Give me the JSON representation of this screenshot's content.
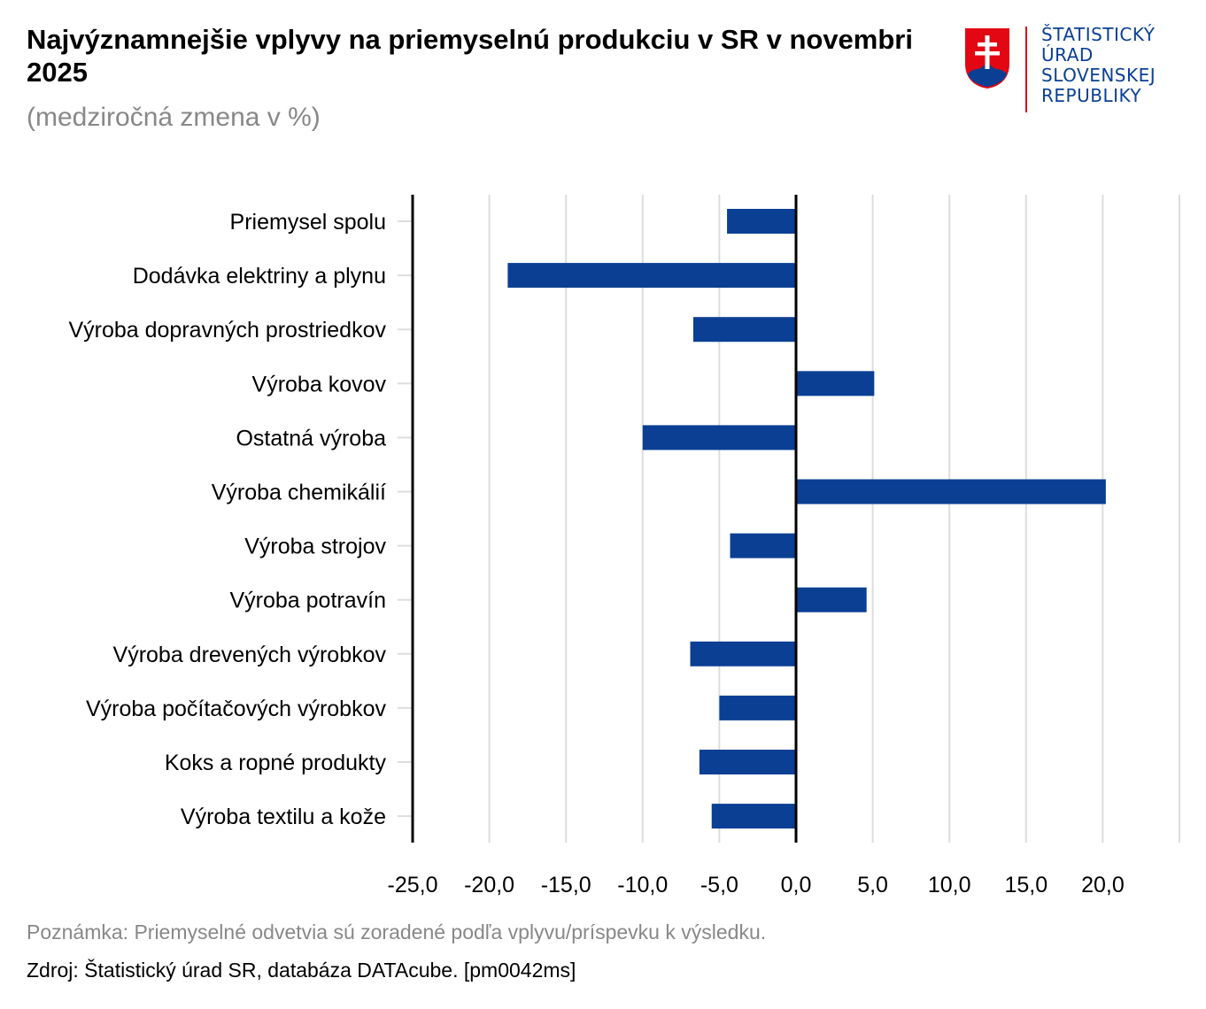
{
  "header": {
    "title": "Najvýznamnejšie vplyvy na priemyselnú produkciu v SR v novembri 2025",
    "subtitle": "(medziročná zmena v %)"
  },
  "logo": {
    "lines": [
      "ŠTATISTICKÝ",
      "ÚRAD",
      "SLOVENSKEJ",
      "REPUBLIKY"
    ],
    "colors": {
      "blue": "#0b3f94",
      "red": "#e30613",
      "white": "#ffffff"
    }
  },
  "chart_data": {
    "type": "bar",
    "orientation": "horizontal",
    "title": "Najvýznamnejšie vplyvy na priemyselnú produkciu v SR v novembri 2025",
    "subtitle": "(medziročná zmena v %)",
    "xlabel": "",
    "ylabel": "",
    "xlim": [
      -25,
      25
    ],
    "xticks": [
      -25,
      -20,
      -15,
      -10,
      -5,
      0,
      5,
      10,
      15,
      20
    ],
    "xtick_labels": [
      "-25,0",
      "-20,0",
      "-15,0",
      "-10,0",
      "-5,0",
      "0,0",
      "5,0",
      "10,0",
      "15,0",
      "20,0"
    ],
    "grid": true,
    "bar_color": "#0b3f94",
    "categories": [
      "Priemysel spolu",
      "Dodávka elektriny a plynu",
      "Výroba dopravných prostriedkov",
      "Výroba kovov",
      "Ostatná výroba",
      "Výroba chemikálií",
      "Výroba strojov",
      "Výroba potravín",
      "Výroba drevených výrobkov",
      "Výroba počítačových výrobkov",
      "Koks a ropné produkty",
      "Výroba textilu a kože"
    ],
    "values": [
      -4.5,
      -18.8,
      -6.7,
      5.1,
      -10.0,
      20.2,
      -4.3,
      4.6,
      -6.9,
      -5.0,
      -6.3,
      -5.5
    ]
  },
  "footer": {
    "note": "Poznámka: Priemyselné odvetvia sú zoradené podľa vplyvu/príspevku k výsledku.",
    "source": "Zdroj: Štatistický úrad SR, databáza DATAcube. [pm0042ms]"
  }
}
